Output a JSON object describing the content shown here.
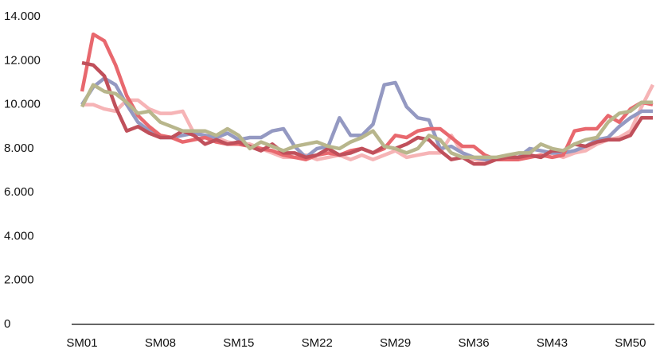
{
  "chart_data": {
    "type": "line",
    "categories": [
      "SM01",
      null,
      null,
      null,
      null,
      null,
      null,
      "SM08",
      null,
      null,
      null,
      null,
      null,
      null,
      "SM15",
      null,
      null,
      null,
      null,
      null,
      null,
      "SM22",
      null,
      null,
      null,
      null,
      null,
      null,
      "SM29",
      null,
      null,
      null,
      null,
      null,
      null,
      "SM36",
      null,
      null,
      null,
      null,
      null,
      null,
      "SM43",
      null,
      null,
      null,
      null,
      null,
      null,
      "SM50",
      null,
      null
    ],
    "series": [
      {
        "color": "#f6b4b6",
        "values": [
          10000,
          10000,
          9800,
          9700,
          10200,
          10200,
          9800,
          9600,
          9600,
          9700,
          8700,
          8600,
          8500,
          8300,
          8200,
          8200,
          8000,
          7800,
          7600,
          7600,
          7700,
          7500,
          7600,
          7700,
          7500,
          7700,
          7500,
          7700,
          7900,
          7600,
          7700,
          7800,
          7800,
          8600,
          7800,
          7500,
          7400,
          7500,
          7500,
          7600,
          7700,
          7600,
          7800,
          7600,
          7800,
          7900,
          8200,
          8400,
          8500,
          8800,
          9900,
          10900
        ]
      },
      {
        "color": "#9499c2",
        "values": [
          10000,
          10800,
          11200,
          10900,
          10000,
          9200,
          8800,
          8500,
          8500,
          8600,
          8700,
          8600,
          8500,
          8700,
          8400,
          8500,
          8500,
          8800,
          8900,
          8100,
          7600,
          8000,
          8100,
          9400,
          8600,
          8600,
          9100,
          10900,
          11000,
          9900,
          9400,
          9300,
          8000,
          8100,
          7800,
          7600,
          7500,
          7500,
          7600,
          7600,
          8000,
          7900,
          7800,
          7800,
          7900,
          8100,
          8400,
          8500,
          9000,
          9400,
          9700,
          9700
        ]
      },
      {
        "color": "#e8686e",
        "values": [
          10600,
          13200,
          12900,
          11800,
          10400,
          9500,
          9000,
          8600,
          8500,
          8300,
          8400,
          8500,
          8300,
          8200,
          8200,
          8100,
          8000,
          7900,
          7700,
          7600,
          7500,
          7700,
          7800,
          7700,
          7900,
          8000,
          7800,
          8000,
          8600,
          8500,
          8800,
          8900,
          8900,
          8500,
          8100,
          8100,
          7700,
          7500,
          7500,
          7500,
          7600,
          7700,
          7600,
          7700,
          8800,
          8900,
          8900,
          9500,
          9200,
          9800,
          10100,
          10000
        ]
      },
      {
        "color": "#c0505b",
        "values": [
          11900,
          11800,
          11300,
          9900,
          8800,
          9000,
          8700,
          8500,
          8500,
          8800,
          8600,
          8200,
          8400,
          8200,
          8300,
          8100,
          7900,
          8200,
          7800,
          7800,
          7600,
          7700,
          8000,
          7700,
          7800,
          8000,
          7800,
          8100,
          8000,
          8200,
          8500,
          8400,
          7900,
          7500,
          7600,
          7300,
          7300,
          7500,
          7600,
          7600,
          7700,
          7600,
          7900,
          7900,
          8200,
          8100,
          8300,
          8400,
          8400,
          8600,
          9400,
          9400
        ]
      },
      {
        "color": "#b8b68c",
        "values": [
          9900,
          10900,
          10600,
          10500,
          10100,
          9600,
          9700,
          9200,
          9000,
          8800,
          8800,
          8800,
          8600,
          8900,
          8600,
          8000,
          8300,
          8100,
          7900,
          8100,
          8200,
          8300,
          8100,
          8000,
          8300,
          8500,
          8800,
          8100,
          8000,
          7800,
          8000,
          8600,
          8400,
          7800,
          7600,
          7600,
          7600,
          7600,
          7700,
          7800,
          7800,
          8200,
          8000,
          7900,
          8200,
          8400,
          8500,
          9200,
          9600,
          9700,
          10100,
          10100
        ]
      }
    ],
    "ylim": [
      0,
      14000
    ],
    "yticks": [
      0,
      {
        "value": 2000,
        "label": "2.000"
      },
      {
        "value": 4000,
        "label": "4.000"
      },
      {
        "value": 6000,
        "label": "6.000"
      },
      {
        "value": 8000,
        "label": "8.000"
      },
      {
        "value": 10000,
        "label": "10.000"
      },
      {
        "value": 12000,
        "label": "12.000"
      },
      {
        "value": 14000,
        "label": "14.000"
      }
    ],
    "grid": false
  }
}
